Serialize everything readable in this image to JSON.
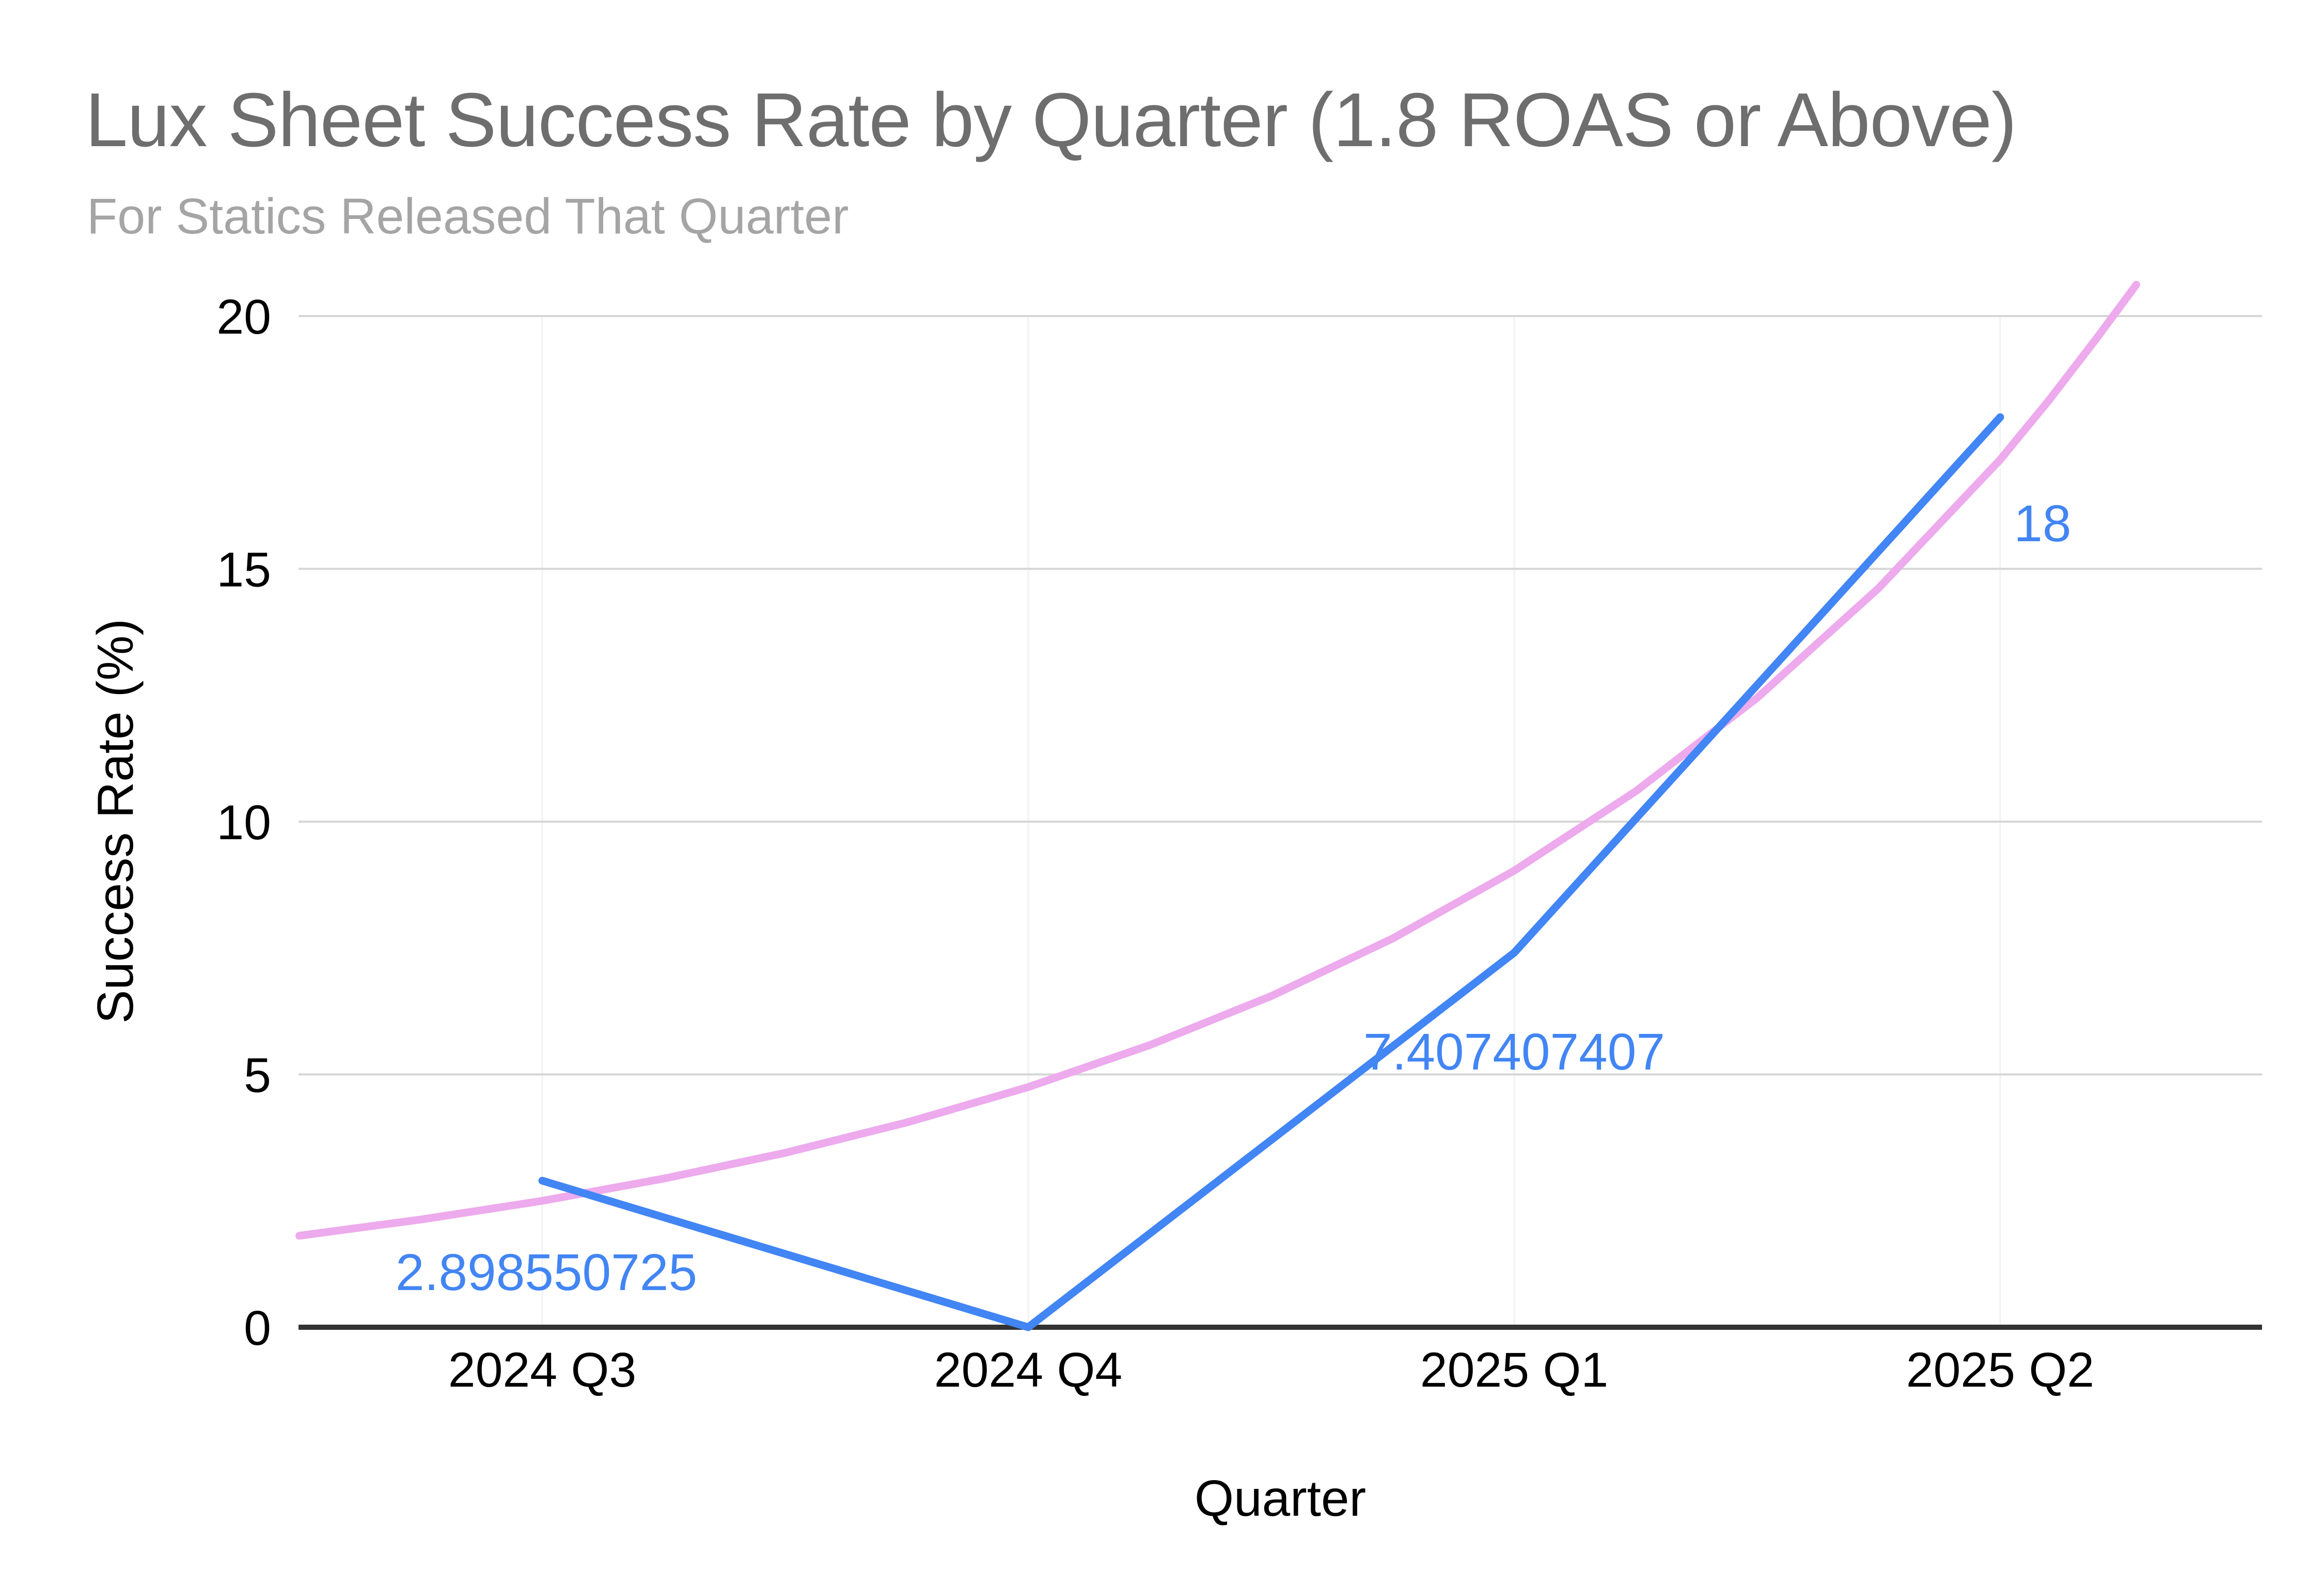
{
  "chart_data": {
    "type": "line",
    "title": "Lux Sheet Success Rate by Quarter (1.8 ROAS or Above)",
    "subtitle": "For Statics Released That Quarter",
    "xlabel": "Quarter",
    "ylabel": "Success Rate (%)",
    "categories": [
      "2024 Q3",
      "2024 Q4",
      "2025 Q1",
      "2025 Q2"
    ],
    "series": [
      {
        "name": "Success Rate (%)",
        "color": "#4285f4",
        "values": [
          2.898550725,
          0,
          7.407407407,
          18
        ],
        "data_labels": [
          "2.898550725",
          null,
          "7.407407407",
          "18"
        ]
      }
    ],
    "trendline": {
      "name": "exponential-trendline",
      "color": "#edaaed",
      "shape": "exponential",
      "points": [
        [
          -0.5,
          1.81
        ],
        [
          -0.25,
          2.13
        ],
        [
          0.0,
          2.5
        ],
        [
          0.25,
          2.94
        ],
        [
          0.5,
          3.45
        ],
        [
          0.75,
          4.05
        ],
        [
          1.0,
          4.75
        ],
        [
          1.25,
          5.58
        ],
        [
          1.5,
          6.55
        ],
        [
          1.75,
          7.69
        ],
        [
          2.0,
          9.03
        ],
        [
          2.25,
          10.6
        ],
        [
          2.5,
          12.45
        ],
        [
          2.75,
          14.62
        ],
        [
          3.0,
          17.16
        ],
        [
          3.1,
          18.33
        ],
        [
          3.2,
          19.58
        ],
        [
          3.28,
          20.62
        ]
      ]
    },
    "ylim": [
      0,
      20
    ],
    "yticks": [
      0,
      5,
      10,
      15,
      20
    ],
    "grid": true,
    "legend": "none"
  },
  "colors": {
    "background": "#ffffff",
    "title": "#6e6e6e",
    "subtitle": "#a5a5a5",
    "tick_label": "#000000",
    "axis_title": "#000000",
    "gridline": "#d6d6d6",
    "vertical_gridline": "#f2f2f2",
    "axis_line": "#333333",
    "series_blue": "#4285f4",
    "trendline_pink": "#edaaed",
    "data_label_blue": "#4285f4"
  }
}
